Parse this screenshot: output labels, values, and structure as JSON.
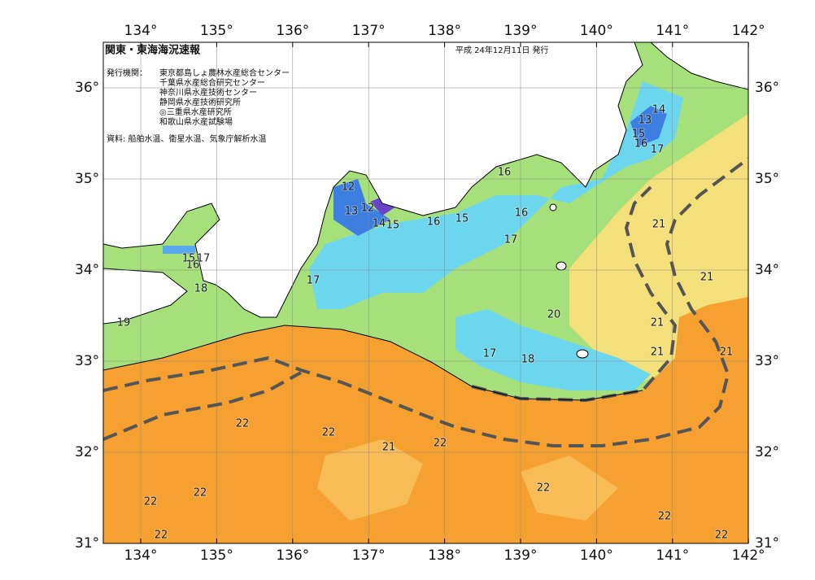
{
  "header": {
    "title": "関東・東海海況速報",
    "date": "平成 24年12月11日 発行",
    "issuer_label": "発行機関：",
    "issuers": [
      "東京都島しょ農林水産総合センター",
      "千葉県水産総合研究センター",
      "神奈川県水産技術センター",
      "静岡県水産技術研究所",
      "◎三重県水産研究所",
      "和歌山県水産試験場"
    ],
    "source": "資料: 船舶水温、衛星水温、気象庁解析水温"
  },
  "lon_labels": [
    "134°",
    "135°",
    "136°",
    "137°",
    "138°",
    "139°",
    "140°",
    "141°",
    "142°"
  ],
  "lat_labels": [
    "36°",
    "35°",
    "34°",
    "33°",
    "32°",
    "31°"
  ],
  "contour_labels": [
    "14",
    "13",
    "15",
    "16",
    "17",
    "16",
    "12",
    "12",
    "13",
    "14",
    "15",
    "16",
    "15",
    "16",
    "17",
    "21",
    "15",
    "17",
    "16",
    "18",
    "17",
    "19",
    "21",
    "20",
    "21",
    "21",
    "21",
    "17",
    "18",
    "22",
    "22",
    "21",
    "22",
    "22",
    "22",
    "22",
    "22",
    "22",
    "22"
  ]
}
